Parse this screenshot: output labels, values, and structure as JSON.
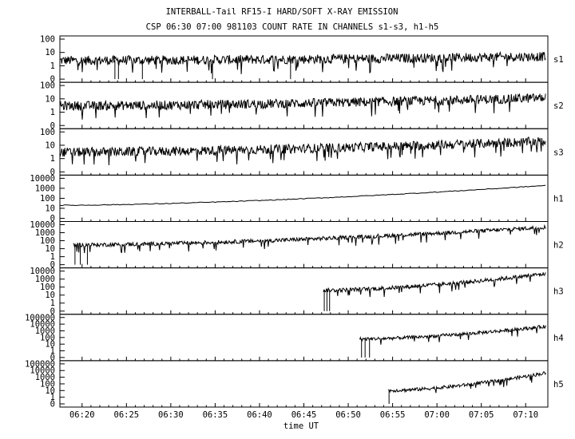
{
  "chart_data": {
    "type": "line",
    "title": "INTERBALL-Tail RF15-I HARD/SOFT X-RAY EMISSION",
    "subtitle": "CSP 06:30 07:00 981103  COUNT RATE IN CHANNELS s1-s3, h1-h5",
    "xlabel": "time UT",
    "x_ticks": [
      "06:20",
      "06:25",
      "06:30",
      "06:35",
      "06:40",
      "06:45",
      "06:50",
      "06:55",
      "07:00",
      "07:05",
      "07:10"
    ],
    "xlim_minutes_after_0600": [
      17.5,
      72.5
    ],
    "yscale": "log",
    "grid": false,
    "series": [
      {
        "name": "s1",
        "ylim": [
          0,
          100
        ],
        "yticks": [
          "100",
          "10",
          "1",
          "0"
        ],
        "start_minute": 17.5,
        "level_start": 2.5,
        "level_end": 5,
        "noise": "high",
        "dropouts": [
          23.7,
          24.1,
          26.8,
          34.7,
          43.5
        ]
      },
      {
        "name": "s2",
        "ylim": [
          0,
          100
        ],
        "yticks": [
          "100",
          "10",
          "1",
          "0"
        ],
        "start_minute": 17.5,
        "level_start": 3,
        "level_end": 12,
        "noise": "high",
        "dropouts": []
      },
      {
        "name": "s3",
        "ylim": [
          0,
          100
        ],
        "yticks": [
          "100",
          "10",
          "1",
          "0"
        ],
        "start_minute": 17.5,
        "level_start": 3,
        "level_end": 20,
        "noise": "high",
        "dropouts": []
      },
      {
        "name": "h1",
        "ylim": [
          0,
          10000
        ],
        "yticks": [
          "10000",
          "1000",
          "100",
          "10",
          "0"
        ],
        "start_minute": 17.5,
        "level_start": 20,
        "level_end": 2000,
        "noise": "low",
        "dropouts": []
      },
      {
        "name": "h2",
        "ylim": [
          0,
          10000
        ],
        "yticks": [
          "10000",
          "1000",
          "100",
          "10",
          "1",
          "0"
        ],
        "start_minute": 19.0,
        "level_start": 30,
        "level_end": 5000,
        "noise": "medium",
        "dropouts": [
          19.2,
          19.8,
          20.6
        ]
      },
      {
        "name": "h3",
        "ylim": [
          0,
          10000
        ],
        "yticks": [
          "10000",
          "1000",
          "100",
          "10",
          "1",
          "0"
        ],
        "start_minute": 47.2,
        "level_start": 40,
        "level_end": 5000,
        "noise": "medium",
        "dropouts": [
          47.3,
          47.6,
          47.9
        ]
      },
      {
        "name": "h4",
        "ylim": [
          0,
          100000
        ],
        "yticks": [
          "100000",
          "10000",
          "1000",
          "100",
          "10",
          "1",
          "0"
        ],
        "start_minute": 51.3,
        "level_start": 60,
        "level_end": 5000,
        "noise": "medium",
        "dropouts": [
          51.5,
          51.9,
          52.4
        ]
      },
      {
        "name": "h5",
        "ylim": [
          0,
          100000
        ],
        "yticks": [
          "100000",
          "10000",
          "1000",
          "100",
          "10",
          "1",
          "0"
        ],
        "start_minute": 54.5,
        "level_start": 10,
        "level_end": 5000,
        "noise": "medium",
        "dropouts": [
          54.6
        ]
      }
    ]
  }
}
